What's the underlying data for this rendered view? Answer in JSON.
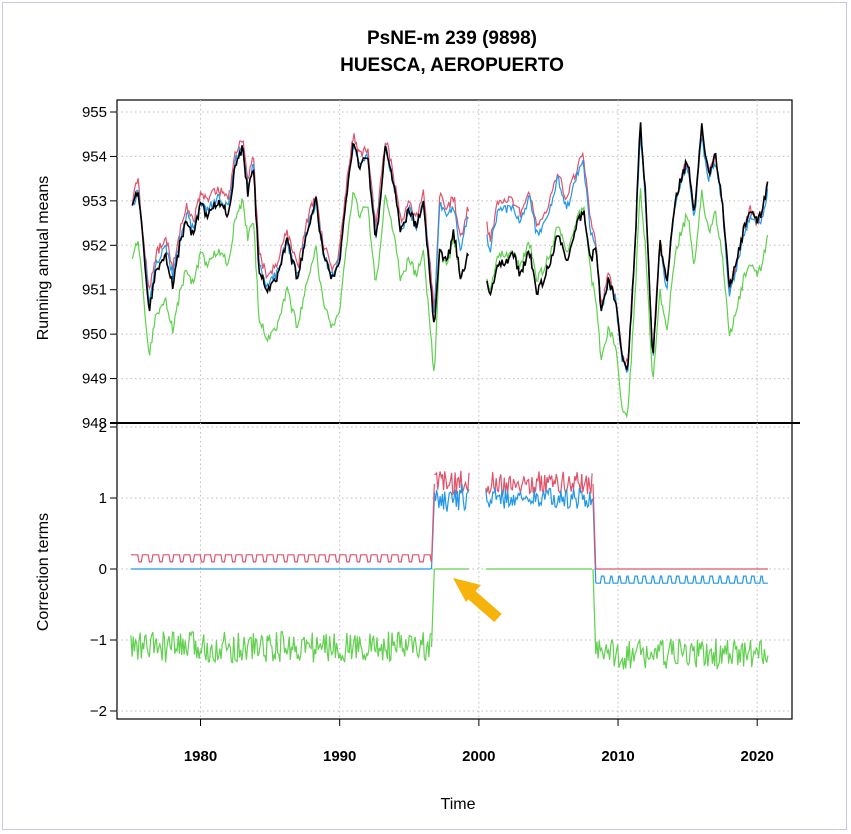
{
  "title_line1": "PsNE-m   239 (9898)",
  "title_line2": "HUESCA, AEROPUERTO",
  "colors": {
    "series_red": "#df536b",
    "series_blue": "#2297e6",
    "series_green": "#61d04f",
    "series_black": "#000000",
    "grid": "#bdbdbd",
    "arrow": "#f5b30c",
    "frame_border": "#c9c6ee"
  },
  "annotation": {
    "icon": "arrow-icon",
    "points_to_year": 1996.8,
    "points_to_value": 0
  },
  "chart_data": [
    {
      "type": "line",
      "ylabel": "Running annual means",
      "xlim": [
        1974,
        2022.5
      ],
      "ylim": [
        948,
        955
      ],
      "yticks": [
        948,
        949,
        950,
        951,
        952,
        953,
        954,
        955
      ],
      "xgrid": [
        1980,
        1990,
        2000,
        2010,
        2020
      ],
      "grid": true,
      "series_colors": [
        "red",
        "blue",
        "green",
        "black"
      ],
      "anchors": {
        "x": [
          1975.1,
          1975.5,
          1976.0,
          1976.3,
          1976.8,
          1977.5,
          1978.0,
          1978.5,
          1979.0,
          1979.5,
          1980.0,
          1980.5,
          1981.2,
          1982.0,
          1982.5,
          1983.0,
          1983.4,
          1983.8,
          1984.2,
          1984.8,
          1985.5,
          1986.2,
          1987.0,
          1987.6,
          1988.3,
          1988.8,
          1989.5,
          1990.0,
          1990.5,
          1991.0,
          1991.4,
          1992.0,
          1992.6,
          1993.3,
          1993.8,
          1994.4,
          1995.0,
          1995.5,
          1996.0,
          1996.4,
          1996.8,
          1997.2,
          1997.7,
          1998.2,
          1998.7,
          1999.2,
          1999.6,
          2000.0,
          2000.4,
          2000.8,
          2001.3,
          2001.8,
          2002.5,
          2003.0,
          2003.6,
          2004.2,
          2005.0,
          2005.7,
          2006.3,
          2007.0,
          2007.5,
          2008.0,
          2008.4,
          2008.8,
          2009.3,
          2009.8,
          2010.3,
          2010.7,
          2011.2,
          2011.6,
          2012.0,
          2012.5,
          2013.0,
          2013.5,
          2014.0,
          2014.5,
          2015.0,
          2015.5,
          2016.0,
          2016.5,
          2017.0,
          2017.5,
          2018.0,
          2018.5,
          2019.0,
          2019.5,
          2020.0,
          2020.4,
          2020.8
        ],
        "black": [
          952.8,
          953.3,
          951.6,
          950.5,
          951.4,
          951.8,
          951.1,
          952.0,
          952.6,
          952.2,
          952.9,
          952.7,
          953.0,
          952.7,
          953.8,
          954.2,
          953.2,
          953.8,
          951.5,
          951.0,
          951.3,
          952.1,
          951.2,
          952.3,
          953.0,
          951.8,
          951.2,
          951.6,
          953.2,
          954.3,
          953.8,
          954.0,
          952.1,
          954.2,
          953.5,
          952.3,
          952.8,
          952.4,
          953.0,
          951.6,
          950.1,
          951.9,
          951.6,
          952.3,
          951.2,
          951.8,
          951.3,
          950.2,
          951.5,
          950.8,
          951.5,
          951.6,
          951.8,
          951.3,
          951.9,
          950.9,
          951.5,
          952.3,
          951.6,
          952.4,
          952.8,
          951.6,
          952.0,
          950.5,
          951.2,
          950.8,
          949.5,
          949.2,
          951.8,
          954.8,
          953.0,
          949.4,
          952.1,
          951.1,
          952.8,
          953.5,
          953.9,
          952.7,
          954.7,
          953.6,
          954.0,
          953.0,
          951.0,
          951.6,
          952.3,
          952.8,
          952.5,
          952.8,
          953.5
        ],
        "blue": [
          952.8,
          953.3,
          951.7,
          950.7,
          951.6,
          952.0,
          951.3,
          952.1,
          952.7,
          952.3,
          953.0,
          952.8,
          953.1,
          952.8,
          953.9,
          954.2,
          953.3,
          953.8,
          951.6,
          951.1,
          951.4,
          952.1,
          951.3,
          952.3,
          953.0,
          951.8,
          951.3,
          951.7,
          953.2,
          954.3,
          953.8,
          954.0,
          952.2,
          954.2,
          953.5,
          952.3,
          952.8,
          952.4,
          953.0,
          951.7,
          950.3,
          953.0,
          952.6,
          952.9,
          951.9,
          952.6,
          952.0,
          951.3,
          952.5,
          951.9,
          952.7,
          952.8,
          952.8,
          952.5,
          953.1,
          952.2,
          952.7,
          953.5,
          952.8,
          953.5,
          953.9,
          952.4,
          951.9,
          950.5,
          951.2,
          950.8,
          949.4,
          949.2,
          951.8,
          954.6,
          952.9,
          949.4,
          952.0,
          951.0,
          952.7,
          953.4,
          953.8,
          952.6,
          954.5,
          953.5,
          953.9,
          952.9,
          950.9,
          951.5,
          952.2,
          952.7,
          952.4,
          952.7,
          953.3
        ],
        "red": [
          953.0,
          953.5,
          951.9,
          950.9,
          951.8,
          952.2,
          951.5,
          952.3,
          952.9,
          952.5,
          953.2,
          953.0,
          953.3,
          953.0,
          954.1,
          954.4,
          953.5,
          954.0,
          951.8,
          951.3,
          951.6,
          952.3,
          951.5,
          952.5,
          953.2,
          952.0,
          951.5,
          951.9,
          953.4,
          954.5,
          954.0,
          954.2,
          952.4,
          954.4,
          953.7,
          952.5,
          953.0,
          952.6,
          953.2,
          951.9,
          950.5,
          953.2,
          952.8,
          953.1,
          952.1,
          952.8,
          952.2,
          951.5,
          952.7,
          952.1,
          952.9,
          953.0,
          953.0,
          952.7,
          953.3,
          952.4,
          952.9,
          953.7,
          953.0,
          953.7,
          954.1,
          952.6,
          952.0,
          950.6,
          951.3,
          950.9,
          949.5,
          949.3,
          951.9,
          954.7,
          953.0,
          949.5,
          952.1,
          951.1,
          952.8,
          953.5,
          953.9,
          952.7,
          954.6,
          953.6,
          954.0,
          953.0,
          951.0,
          951.6,
          952.3,
          952.8,
          952.5,
          952.8,
          953.4
        ],
        "green": [
          951.6,
          952.2,
          950.5,
          949.5,
          950.4,
          950.8,
          950.1,
          950.9,
          951.5,
          951.1,
          951.8,
          951.6,
          951.9,
          951.6,
          952.6,
          953.0,
          952.2,
          952.6,
          950.4,
          949.9,
          950.2,
          951.0,
          950.1,
          951.2,
          951.9,
          950.7,
          950.1,
          950.5,
          952.1,
          953.2,
          952.7,
          952.9,
          951.1,
          953.1,
          952.4,
          951.2,
          951.7,
          951.3,
          951.9,
          950.5,
          949.0,
          951.9,
          951.5,
          952.2,
          951.2,
          951.8,
          951.3,
          950.1,
          951.5,
          950.9,
          951.7,
          951.8,
          951.8,
          951.5,
          952.1,
          951.2,
          951.7,
          952.5,
          951.8,
          952.5,
          952.9,
          951.4,
          950.8,
          949.4,
          950.1,
          949.8,
          948.3,
          948.2,
          950.7,
          953.3,
          951.8,
          948.9,
          951.0,
          950.0,
          951.6,
          952.3,
          952.7,
          951.5,
          953.2,
          952.3,
          952.7,
          951.8,
          949.9,
          950.5,
          951.2,
          951.6,
          951.3,
          951.6,
          952.3
        ]
      },
      "gap": [
        1999.3,
        2000.5
      ]
    },
    {
      "type": "line",
      "xlabel": "Time",
      "ylabel": "Correction terms",
      "xlim": [
        1974,
        2022.5
      ],
      "ylim": [
        -2,
        2
      ],
      "yticks": [
        -2,
        -1,
        0,
        1,
        2
      ],
      "xticks": [
        1980,
        1990,
        2000,
        2010,
        2020
      ],
      "grid": true,
      "series_colors": [
        "red",
        "blue",
        "green"
      ],
      "gap": [
        1999.3,
        2000.5
      ],
      "segments": [
        {
          "from": 1975.0,
          "to": 1996.6,
          "red_base": 0.1,
          "red_alt": 0.2,
          "blue": 0.0,
          "green": -1.1,
          "green_noise": 0.2
        },
        {
          "from": 1996.8,
          "to": 1999.3,
          "red_base": 1.15,
          "red_noise": 0.2,
          "blue_base": 1.0,
          "blue_noise": 0.2,
          "green": 0.0
        },
        {
          "from": 2000.5,
          "to": 2008.2,
          "red_base": 1.15,
          "red_noise": 0.18,
          "blue_base": 1.0,
          "blue_noise": 0.15,
          "green": 0.0
        },
        {
          "from": 2008.4,
          "to": 2020.8,
          "red": 0.0,
          "blue_base": -0.2,
          "blue_alt": -0.1,
          "green": -1.2,
          "green_noise": 0.2
        }
      ]
    }
  ],
  "labels": {
    "yaxis_top": "Running annual means",
    "yaxis_bottom": "Correction terms",
    "xaxis": "Time",
    "yticks_top": [
      "955",
      "954",
      "953",
      "952",
      "951",
      "950",
      "949",
      "948"
    ],
    "yticks_bottom": [
      "2",
      "1",
      "0",
      "−1",
      "−2"
    ],
    "xticks": [
      "1980",
      "1990",
      "2000",
      "2010",
      "2020"
    ]
  }
}
